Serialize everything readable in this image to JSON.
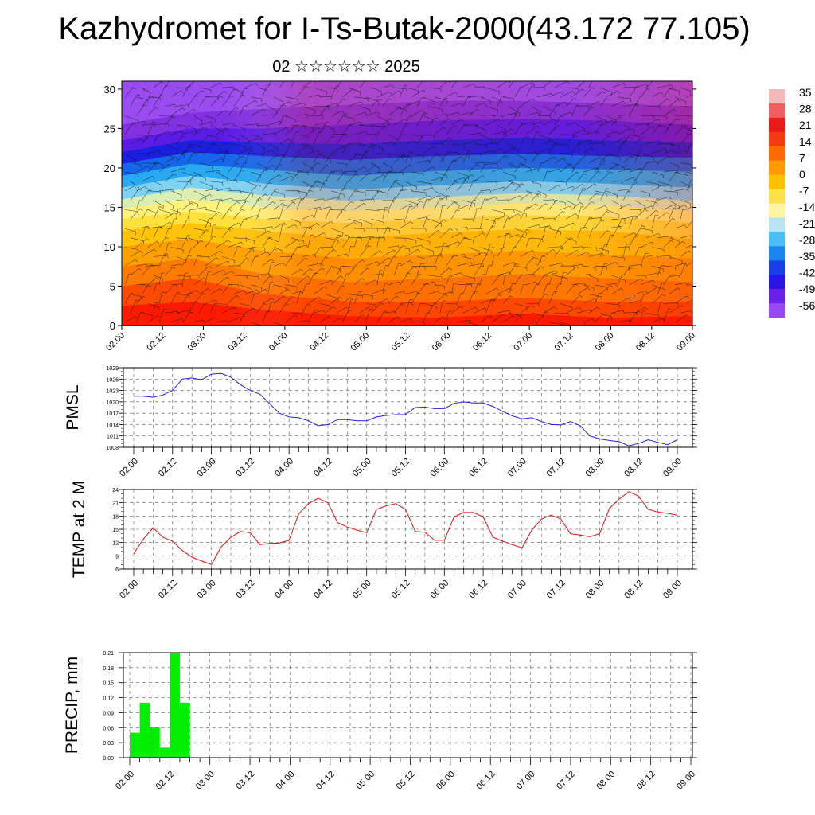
{
  "title": "Kazhydromet for I-Ts-Butak-2000(43.172 77.105)",
  "subtitle": "02 ☆☆☆☆☆☆ 2025",
  "colors": {
    "pmsl_line": "#1f1fd6",
    "temp_line": "#e01010",
    "precip_bar": "#00ee00"
  },
  "x_tick_labels": [
    "02.00",
    "02.12",
    "03.00",
    "03.12",
    "04.00",
    "04.12",
    "05.00",
    "05.12",
    "06.00",
    "06.12",
    "07.00",
    "07.12",
    "08.00",
    "08.12",
    "09.00"
  ],
  "colorbar": {
    "labels": [
      "35",
      "28",
      "21",
      "14",
      "7",
      "0",
      "-7",
      "-14",
      "-21",
      "-28",
      "-35",
      "-42",
      "-49",
      "-56"
    ]
  },
  "chart_data": [
    {
      "id": "cross_section",
      "type": "heatmap",
      "title": "",
      "xlabel": "",
      "ylabel": "",
      "x_ticks": [
        "02.00",
        "02.12",
        "03.00",
        "03.12",
        "04.00",
        "04.12",
        "05.00",
        "05.12",
        "06.00",
        "06.12",
        "07.00",
        "07.12",
        "08.00",
        "08.12",
        "09.00"
      ],
      "y_ticks": [
        "0",
        "5",
        "10",
        "15",
        "20",
        "25",
        "30"
      ],
      "ylim": [
        0,
        31
      ],
      "color_scale": [
        "35",
        "28",
        "21",
        "14",
        "7",
        "0",
        "-7",
        "-14",
        "-21",
        "-28",
        "-35",
        "-42",
        "-49",
        "-56"
      ],
      "overlay": "wind barbs"
    },
    {
      "id": "pmsl",
      "type": "line",
      "ylabel": "PMSL",
      "x_ticks": [
        "02.00",
        "02.12",
        "03.00",
        "03.12",
        "04.00",
        "04.12",
        "05.00",
        "05.12",
        "06.00",
        "06.12",
        "07.00",
        "07.12",
        "08.00",
        "08.12",
        "09.00"
      ],
      "y_ticks": [
        "1008",
        "1011",
        "1014",
        "1017",
        "1020",
        "1023",
        "1026",
        "1029"
      ],
      "ylim": [
        1008,
        1029
      ],
      "x_hours": [
        0,
        3,
        6,
        9,
        12,
        15,
        18,
        21,
        24,
        27,
        30,
        33,
        36,
        39,
        42,
        45,
        48,
        51,
        54,
        57,
        60,
        63,
        66,
        69,
        72,
        75,
        78,
        81,
        84,
        87,
        90,
        93,
        96,
        99,
        102,
        105,
        108,
        111,
        114,
        117,
        120,
        123,
        126,
        129,
        132,
        135,
        138,
        141,
        144,
        147,
        150,
        153,
        156,
        159,
        162,
        165,
        168
      ],
      "values": [
        1021.5,
        1021.5,
        1021.2,
        1021.8,
        1023,
        1026,
        1026.3,
        1025.8,
        1027.3,
        1027.5,
        1026.5,
        1024.5,
        1023,
        1022,
        1019.5,
        1017,
        1016,
        1015.8,
        1015,
        1013.7,
        1014,
        1015.3,
        1015.3,
        1015,
        1015,
        1016,
        1016.4,
        1016.6,
        1016.6,
        1018.5,
        1018.6,
        1018.2,
        1018.2,
        1019.6,
        1020,
        1019.7,
        1019.7,
        1018.8,
        1017.5,
        1016.3,
        1015.5,
        1015.8,
        1014.8,
        1014,
        1013.9,
        1014.8,
        1013.7,
        1011,
        1010.2,
        1009.8,
        1009.5,
        1008.4,
        1009,
        1010,
        1009.3,
        1008.7,
        1010
      ]
    },
    {
      "id": "temp",
      "type": "line",
      "ylabel": "TEMP at 2 M",
      "x_ticks": [
        "02.00",
        "02.12",
        "03.00",
        "03.12",
        "04.00",
        "04.12",
        "05.00",
        "05.12",
        "06.00",
        "06.12",
        "07.00",
        "07.12",
        "08.00",
        "08.12",
        "09.00"
      ],
      "y_ticks": [
        "6",
        "9",
        "12",
        "15",
        "18",
        "21",
        "24"
      ],
      "ylim": [
        6,
        24
      ],
      "x_hours": [
        0,
        3,
        6,
        9,
        12,
        15,
        18,
        21,
        24,
        27,
        30,
        33,
        36,
        39,
        42,
        45,
        48,
        51,
        54,
        57,
        60,
        63,
        66,
        69,
        72,
        75,
        78,
        81,
        84,
        87,
        90,
        93,
        96,
        99,
        102,
        105,
        108,
        111,
        114,
        117,
        120,
        123,
        126,
        129,
        132,
        135,
        138,
        141,
        144,
        147,
        150,
        153,
        156,
        159,
        162,
        165,
        168
      ],
      "values": [
        9.5,
        12.8,
        15.3,
        13.2,
        12.3,
        10.2,
        8.7,
        7.8,
        7,
        11,
        13.2,
        14.5,
        14.2,
        11.5,
        11.8,
        11.9,
        12.5,
        18.5,
        20.8,
        22,
        21,
        16.5,
        15.5,
        14.8,
        14.2,
        19.5,
        20.3,
        20.8,
        19.5,
        14.5,
        14.3,
        12.5,
        12.5,
        17.8,
        18.8,
        18.8,
        17.8,
        13.2,
        12.3,
        11.5,
        10.8,
        14.8,
        17.3,
        18.2,
        17.3,
        14,
        13.7,
        13.3,
        14,
        19.7,
        21.8,
        23.5,
        22.5,
        19.5,
        18.9,
        18.6,
        18.2
      ]
    },
    {
      "id": "precip",
      "type": "bar",
      "ylabel": "PRECIP, mm",
      "x_ticks": [
        "02.00",
        "02.12",
        "03.00",
        "03.12",
        "04.00",
        "04.12",
        "05.00",
        "05.12",
        "06.00",
        "06.12",
        "07.00",
        "07.12",
        "08.00",
        "08.12",
        "09.00"
      ],
      "y_ticks": [
        "0.00",
        "0.03",
        "0.06",
        "0.09",
        "0.12",
        "0.15",
        "0.18",
        "0.21"
      ],
      "ylim": [
        0,
        0.21
      ],
      "bars": [
        {
          "start_hour": 0,
          "end_hour": 3,
          "value": 0.05
        },
        {
          "start_hour": 3,
          "end_hour": 6,
          "value": 0.11
        },
        {
          "start_hour": 6,
          "end_hour": 9,
          "value": 0.06
        },
        {
          "start_hour": 9,
          "end_hour": 12,
          "value": 0.02
        },
        {
          "start_hour": 12,
          "end_hour": 15,
          "value": 0.21
        },
        {
          "start_hour": 15,
          "end_hour": 18,
          "value": 0.11
        }
      ]
    }
  ]
}
